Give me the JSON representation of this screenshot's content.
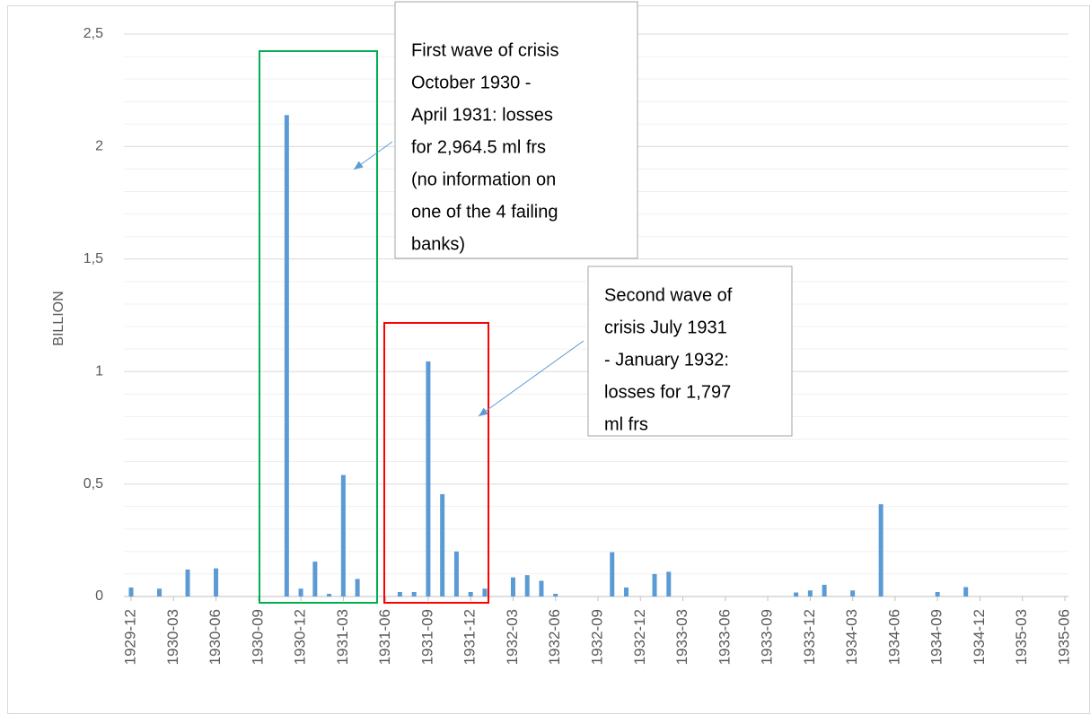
{
  "chart_data": {
    "type": "bar",
    "y_label": "BILLION",
    "color": "#5b9bd5",
    "categories": [
      "1929-12",
      null,
      null,
      "1930-03",
      null,
      null,
      "1930-06",
      null,
      null,
      "1930-09",
      null,
      null,
      "1930-12",
      null,
      null,
      "1931-03",
      null,
      null,
      "1931-06",
      null,
      null,
      "1931-09",
      null,
      null,
      "1931-12",
      null,
      null,
      "1932-03",
      null,
      null,
      "1932-06",
      null,
      null,
      "1932-09",
      null,
      null,
      "1932-12",
      null,
      null,
      "1933-03",
      null,
      null,
      "1933-06",
      null,
      null,
      "1933-09",
      null,
      null,
      "1933-12",
      null,
      null,
      "1934-03",
      null,
      null,
      "1934-06",
      null,
      null,
      "1934-09",
      null,
      null,
      "1934-12",
      null,
      null,
      "1935-03",
      null,
      null,
      "1935-06"
    ],
    "values": [
      0.04,
      0,
      0.035,
      0,
      0.12,
      0,
      0.125,
      0,
      0,
      0,
      0,
      2.14,
      0.035,
      0.155,
      0.012,
      0.54,
      0.078,
      0,
      0,
      0.02,
      0.02,
      1.045,
      0.455,
      0.2,
      0.02,
      0.035,
      0,
      0.085,
      0.095,
      0.07,
      0.012,
      0,
      0,
      0,
      0.197,
      0.04,
      0,
      0.1,
      0.11,
      0,
      0,
      0,
      0,
      0,
      0,
      0,
      0,
      0.018,
      0.027,
      0.052,
      0,
      0.027,
      0,
      0.41,
      0,
      0,
      0,
      0.02,
      0,
      0.042,
      0,
      0,
      0,
      0,
      0,
      0,
      0
    ],
    "ylim": [
      0,
      2.5
    ],
    "yticks": [
      0,
      {
        "value": 0.5,
        "label": "0,5"
      },
      1,
      {
        "value": 1.5,
        "label": "1,5"
      },
      2,
      {
        "value": 2.5,
        "label": "2,5"
      }
    ],
    "minor_yticks": [
      0.1,
      0.2,
      0.3,
      0.4,
      0.6,
      0.7,
      0.8,
      0.9,
      1.1,
      1.2,
      1.3,
      1.4,
      1.6,
      1.7,
      1.8,
      1.9,
      2.1,
      2.2,
      2.3,
      2.4
    ],
    "grid": true,
    "annotations": [
      {
        "lines": [
          "First wave of crisis",
          "October 1930 -",
          "April 1931: losses",
          "for 2,964.5 ml frs",
          "(no information on",
          "one of the 4 failing",
          "banks)"
        ],
        "highlight_color": "#00b050"
      },
      {
        "lines": [
          "Second wave of",
          "crisis July 1931",
          "- January 1932:",
          "losses for 1,797",
          "ml frs"
        ],
        "highlight_color": "#ff0000"
      }
    ]
  }
}
